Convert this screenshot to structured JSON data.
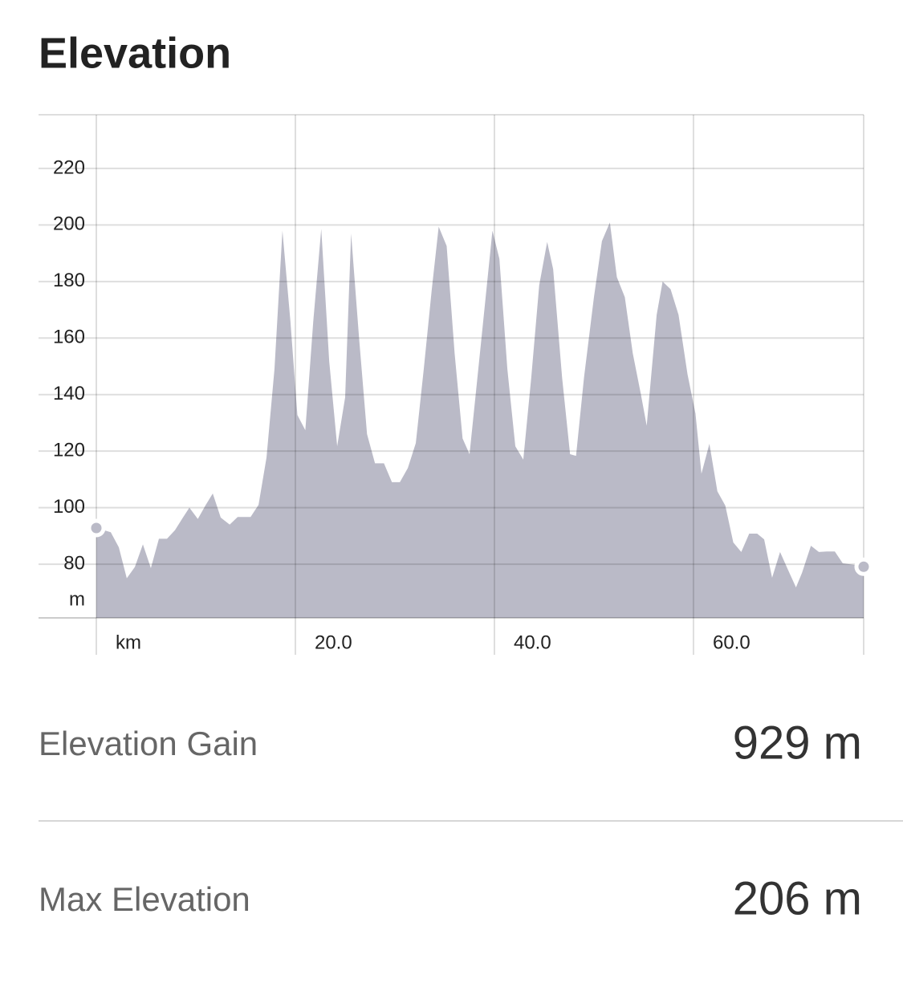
{
  "chart_data": {
    "type": "area",
    "title": "Elevation",
    "y_unit": "m",
    "color": "#babac7",
    "xlim": [
      0,
      77.1
    ],
    "ylim": [
      61,
      239
    ],
    "xticks": [
      {
        "value": 0,
        "label": "km"
      },
      {
        "value": 20,
        "label": "20.0"
      },
      {
        "value": 40,
        "label": "40.0"
      },
      {
        "value": 60,
        "label": "60.0"
      }
    ],
    "yticks": [
      80,
      100,
      120,
      140,
      160,
      180,
      200,
      220
    ],
    "grid": true,
    "x": [
      0,
      1.45,
      2.26,
      3.06,
      3.87,
      4.68,
      5.48,
      6.29,
      7.1,
      7.9,
      8.7,
      9.35,
      10.2,
      11,
      11.7,
      12.5,
      13.4,
      14.2,
      15.5,
      16.3,
      17.1,
      17.9,
      18.7,
      19.5,
      20.2,
      21,
      21.8,
      22.6,
      23.4,
      24.2,
      25,
      25.6,
      26.4,
      27.2,
      28,
      28.9,
      29.7,
      30.5,
      31.3,
      32.1,
      32.9,
      33.7,
      34.4,
      35.2,
      36,
      36.8,
      37.5,
      38.7,
      39.8,
      40.5,
      41.3,
      42.1,
      42.9,
      43.7,
      44.5,
      45.3,
      45.9,
      46.8,
      47.6,
      48.2,
      49,
      50,
      50.8,
      51.6,
      52.3,
      53.1,
      53.9,
      54.7,
      55.3,
      56.3,
      56.9,
      57.7,
      58.5,
      59.4,
      60.2,
      60.8,
      61.6,
      62.4,
      63.2,
      64,
      64.8,
      65.6,
      66.4,
      67.1,
      67.9,
      68.7,
      69.5,
      70.3,
      70.9,
      71.8,
      72.6,
      73.4,
      74.2,
      75,
      76.3,
      77.1
    ],
    "values": [
      92.8,
      91.3,
      86,
      75,
      79,
      87,
      78.6,
      89,
      89,
      92,
      96.5,
      100,
      96,
      101,
      105,
      96.5,
      94,
      96.7,
      96.7,
      101,
      117.7,
      149,
      198,
      166,
      132.8,
      127.4,
      166,
      198.6,
      151.8,
      121.7,
      139,
      197,
      160,
      126,
      115.7,
      115.7,
      109,
      109,
      114,
      122.8,
      149,
      177,
      199.4,
      192.6,
      154.6,
      124.5,
      118.9,
      160,
      198,
      188,
      149,
      121.7,
      117,
      146,
      178.7,
      194,
      184.4,
      146,
      118.9,
      118.3,
      146,
      174.5,
      194.3,
      200.9,
      181.6,
      174.5,
      154.6,
      140.4,
      129,
      168.2,
      180,
      177.3,
      168.2,
      147.2,
      133.3,
      112,
      122.6,
      105.8,
      100.7,
      87.7,
      84.3,
      90.8,
      90.8,
      88.8,
      75.2,
      84.3,
      78,
      71.8,
      76.9,
      86.5,
      84.3,
      84.5,
      84.5,
      80.3,
      79.7,
      79.1
    ]
  },
  "stats": [
    {
      "label": "Elevation Gain",
      "value": "929 m"
    },
    {
      "label": "Max Elevation",
      "value": "206 m"
    }
  ]
}
